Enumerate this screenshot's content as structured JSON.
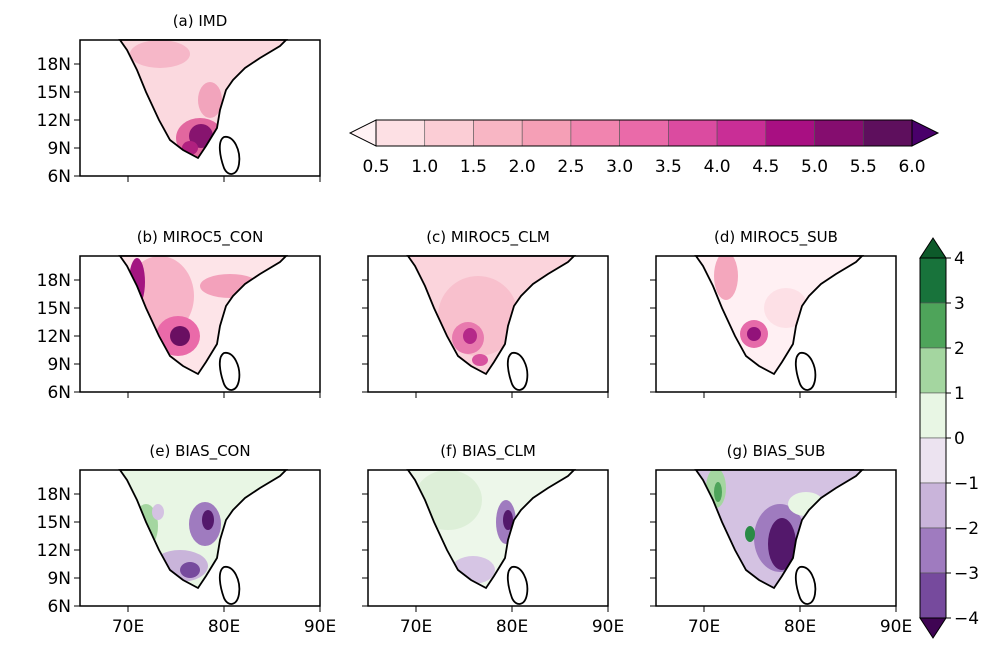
{
  "panels": [
    {
      "id": "a",
      "title": "(a) IMD",
      "field": "mean",
      "show_y_ticks": true,
      "show_x_ticks": false
    },
    {
      "id": "b",
      "title": "(b) MIROC5_CON",
      "field": "mean",
      "show_y_ticks": true,
      "show_x_ticks": false
    },
    {
      "id": "c",
      "title": "(c) MIROC5_CLM",
      "field": "mean",
      "show_y_ticks": false,
      "show_x_ticks": false
    },
    {
      "id": "d",
      "title": "(d) MIROC5_SUB",
      "field": "mean",
      "show_y_ticks": false,
      "show_x_ticks": false
    },
    {
      "id": "e",
      "title": "(e) BIAS_CON",
      "field": "bias",
      "show_y_ticks": true,
      "show_x_ticks": true
    },
    {
      "id": "f",
      "title": "(f) BIAS_CLM",
      "field": "bias",
      "show_y_ticks": false,
      "show_x_ticks": true
    },
    {
      "id": "g",
      "title": "(g) BIAS_SUB",
      "field": "bias",
      "show_y_ticks": false,
      "show_x_ticks": true
    }
  ],
  "axes": {
    "lat_ticks": [
      "18N",
      "15N",
      "12N",
      "9N",
      "6N"
    ],
    "lon_ticks": [
      "70E",
      "80E",
      "90E"
    ]
  },
  "colorbar_mean": {
    "orientation": "horizontal",
    "extend": "both",
    "tick_labels": [
      "0.5",
      "1.0",
      "1.5",
      "2.0",
      "2.5",
      "3.0",
      "3.5",
      "4.0",
      "4.5",
      "5.0",
      "5.5",
      "6.0"
    ],
    "colors": [
      "#fff2f4",
      "#fde0e4",
      "#fbcdd5",
      "#f8b6c4",
      "#f59fb6",
      "#f184af",
      "#ea6aa9",
      "#db4ba0",
      "#c92e96",
      "#a80f82",
      "#850d6f",
      "#5e0f5d",
      "#49006a"
    ]
  },
  "colorbar_bias": {
    "orientation": "vertical",
    "extend": "both",
    "tick_labels": [
      "4",
      "3",
      "2",
      "1",
      "0",
      "−1",
      "−2",
      "−3",
      "−4"
    ],
    "colors": [
      "#0d5a2a",
      "#18733b",
      "#4ea45a",
      "#a4d6a0",
      "#e8f6e4",
      "#ece3f0",
      "#c9b4da",
      "#9f7bbf",
      "#764a9d",
      "#53186b",
      "#3f0553"
    ]
  }
}
